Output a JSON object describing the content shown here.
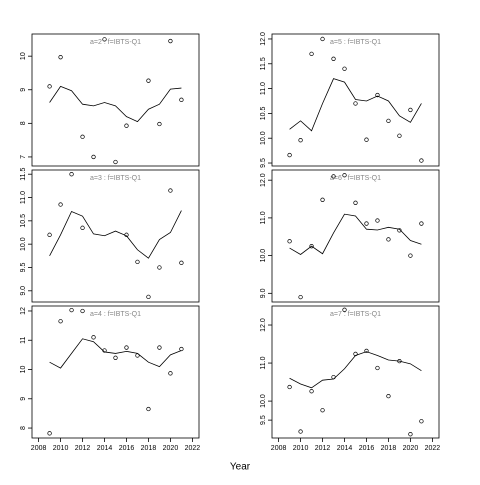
{
  "xlabel": "Year",
  "chart_data": [
    {
      "type": "line",
      "title": "a=2 : f=IBTS-Q1",
      "x": [
        2009,
        2010,
        2011,
        2012,
        2013,
        2014,
        2015,
        2016,
        2017,
        2018,
        2019,
        2020,
        2021
      ],
      "series": [
        {
          "marker": "circle",
          "values": [
            9.1,
            9.97,
            null,
            7.6,
            7.0,
            10.5,
            6.85,
            7.93,
            null,
            9.27,
            7.98,
            10.45,
            8.7
          ]
        },
        {
          "marker": "none",
          "values": [
            8.62,
            9.1,
            8.97,
            8.57,
            8.52,
            8.62,
            8.52,
            8.2,
            8.05,
            8.42,
            8.57,
            9.02,
            9.05
          ]
        }
      ],
      "xlim": [
        2007.4,
        2022.6
      ],
      "ylim": [
        6.73,
        10.66
      ],
      "yticks": [
        7,
        8,
        9,
        10
      ]
    },
    {
      "type": "line",
      "title": "a=3 : f=IBTS-Q1",
      "x": [
        2009,
        2010,
        2011,
        2012,
        2013,
        2014,
        2015,
        2016,
        2017,
        2018,
        2019,
        2020,
        2021
      ],
      "series": [
        {
          "marker": "circle",
          "values": [
            10.2,
            10.85,
            11.5,
            10.35,
            null,
            null,
            null,
            10.2,
            9.62,
            8.87,
            9.5,
            11.15,
            9.6
          ]
        },
        {
          "marker": "none",
          "values": [
            9.75,
            10.2,
            10.7,
            10.6,
            10.22,
            10.18,
            10.28,
            10.18,
            9.88,
            9.7,
            10.1,
            10.25,
            10.72
          ]
        }
      ],
      "xlim": [
        2007.4,
        2022.6
      ],
      "ylim": [
        8.76,
        11.59
      ],
      "yticks": [
        {
          "value": 9,
          "label": "9.0"
        },
        9.5,
        {
          "value": 10,
          "label": "10.0"
        },
        10.5,
        {
          "value": 11,
          "label": "11.0"
        },
        11.5
      ]
    },
    {
      "type": "line",
      "title": "a=4 : f=IBTS-Q1",
      "x": [
        2009,
        2010,
        2011,
        2012,
        2013,
        2014,
        2015,
        2016,
        2017,
        2018,
        2019,
        2020,
        2021
      ],
      "series": [
        {
          "marker": "circle",
          "values": [
            7.82,
            11.65,
            12.03,
            12.0,
            11.1,
            10.65,
            10.4,
            10.75,
            10.48,
            8.65,
            10.75,
            9.87,
            10.7
          ]
        },
        {
          "marker": "none",
          "values": [
            10.25,
            10.05,
            10.55,
            11.05,
            10.95,
            10.6,
            10.55,
            10.62,
            10.55,
            10.25,
            10.1,
            10.5,
            10.65
          ]
        }
      ],
      "xlim": [
        2007.4,
        2022.6
      ],
      "ylim": [
        7.66,
        12.17
      ],
      "yticks": [
        8,
        9,
        10,
        11,
        12
      ],
      "xticks": [
        2008,
        2010,
        2012,
        2014,
        2016,
        2018,
        2020,
        2022
      ]
    },
    {
      "type": "line",
      "title": "a=5 : f=IBTS-Q1",
      "x": [
        2009,
        2010,
        2011,
        2012,
        2013,
        2014,
        2015,
        2016,
        2017,
        2018,
        2019,
        2020,
        2021
      ],
      "series": [
        {
          "marker": "circle",
          "values": [
            9.66,
            9.96,
            11.7,
            12.0,
            11.6,
            11.4,
            10.7,
            9.97,
            10.87,
            10.35,
            10.05,
            10.57,
            9.55
          ]
        },
        {
          "marker": "none",
          "values": [
            10.18,
            10.35,
            10.15,
            10.7,
            11.2,
            11.13,
            10.78,
            10.75,
            10.85,
            10.75,
            10.45,
            10.32,
            10.7
          ]
        }
      ],
      "xlim": [
        2007.4,
        2022.6
      ],
      "ylim": [
        9.44,
        12.1
      ],
      "yticks": [
        9.5,
        {
          "value": 10,
          "label": "10.0"
        },
        10.5,
        {
          "value": 11,
          "label": "11.0"
        },
        11.5,
        {
          "value": 12,
          "label": "12.0"
        }
      ]
    },
    {
      "type": "line",
      "title": "a=6 : f=IBTS-Q1",
      "x": [
        2009,
        2010,
        2011,
        2012,
        2013,
        2014,
        2015,
        2016,
        2017,
        2018,
        2019,
        2020,
        2021
      ],
      "series": [
        {
          "marker": "circle",
          "values": [
            10.38,
            8.9,
            10.25,
            11.48,
            12.1,
            12.13,
            11.4,
            10.85,
            10.93,
            10.43,
            10.67,
            10.0,
            10.85
          ]
        },
        {
          "marker": "none",
          "values": [
            10.2,
            10.03,
            10.25,
            10.05,
            10.6,
            11.1,
            11.05,
            10.7,
            10.68,
            10.75,
            10.7,
            10.4,
            10.3
          ]
        }
      ],
      "xlim": [
        2007.4,
        2022.6
      ],
      "ylim": [
        8.77,
        12.27
      ],
      "yticks": [
        {
          "value": 9,
          "label": "9.0"
        },
        {
          "value": 10,
          "label": "10.0"
        },
        {
          "value": 11,
          "label": "11.0"
        },
        {
          "value": 12,
          "label": "12.0"
        }
      ]
    },
    {
      "type": "line",
      "title": "a=7 : f=IBTS-Q1",
      "x": [
        2009,
        2010,
        2011,
        2012,
        2013,
        2014,
        2015,
        2016,
        2017,
        2018,
        2019,
        2020,
        2021
      ],
      "series": [
        {
          "marker": "circle",
          "values": [
            10.37,
            9.2,
            10.26,
            9.76,
            10.63,
            12.4,
            11.24,
            11.32,
            10.87,
            10.13,
            11.05,
            9.13,
            9.47
          ]
        },
        {
          "marker": "none",
          "values": [
            10.6,
            10.45,
            10.35,
            10.55,
            10.58,
            10.85,
            11.2,
            11.3,
            11.2,
            11.08,
            11.05,
            10.98,
            10.8
          ]
        }
      ],
      "xlim": [
        2007.4,
        2022.6
      ],
      "ylim": [
        9.03,
        12.5
      ],
      "yticks": [
        9.5,
        {
          "value": 10,
          "label": "10.0"
        },
        {
          "value": 11,
          "label": "11.0"
        },
        {
          "value": 12,
          "label": "12.0"
        }
      ],
      "xticks": [
        2008,
        2010,
        2012,
        2014,
        2016,
        2018,
        2020,
        2022
      ]
    }
  ]
}
